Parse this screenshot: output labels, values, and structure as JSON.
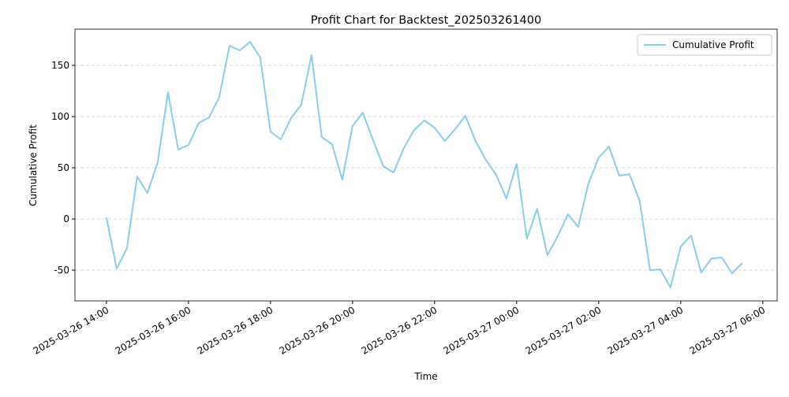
{
  "chart_data": {
    "type": "line",
    "title": "Profit Chart for Backtest_202503261400",
    "xlabel": "Time",
    "ylabel": "Cumulative Profit",
    "x": [
      "2025-03-26 14:00",
      "2025-03-26 14:15",
      "2025-03-26 14:30",
      "2025-03-26 14:45",
      "2025-03-26 15:00",
      "2025-03-26 15:15",
      "2025-03-26 15:30",
      "2025-03-26 15:45",
      "2025-03-26 16:00",
      "2025-03-26 16:15",
      "2025-03-26 16:30",
      "2025-03-26 16:45",
      "2025-03-26 17:00",
      "2025-03-26 17:15",
      "2025-03-26 17:30",
      "2025-03-26 17:45",
      "2025-03-26 18:00",
      "2025-03-26 18:15",
      "2025-03-26 18:30",
      "2025-03-26 18:45",
      "2025-03-26 19:00",
      "2025-03-26 19:15",
      "2025-03-26 19:30",
      "2025-03-26 19:45",
      "2025-03-26 20:00",
      "2025-03-26 20:15",
      "2025-03-26 20:30",
      "2025-03-26 20:45",
      "2025-03-26 21:00",
      "2025-03-26 21:15",
      "2025-03-26 21:30",
      "2025-03-26 21:45",
      "2025-03-26 22:00",
      "2025-03-26 22:15",
      "2025-03-26 22:30",
      "2025-03-26 22:45",
      "2025-03-26 23:00",
      "2025-03-26 23:15",
      "2025-03-26 23:30",
      "2025-03-26 23:45",
      "2025-03-27 00:00",
      "2025-03-27 00:15",
      "2025-03-27 00:30",
      "2025-03-27 00:45",
      "2025-03-27 01:00",
      "2025-03-27 01:15",
      "2025-03-27 01:30",
      "2025-03-27 01:45",
      "2025-03-27 02:00",
      "2025-03-27 02:15",
      "2025-03-27 02:30",
      "2025-03-27 02:45",
      "2025-03-27 03:00",
      "2025-03-27 03:15",
      "2025-03-27 03:30",
      "2025-03-27 03:45",
      "2025-03-27 04:00",
      "2025-03-27 04:15",
      "2025-03-27 04:30",
      "2025-03-27 04:45",
      "2025-03-27 05:00",
      "2025-03-27 05:15",
      "2025-03-27 05:30"
    ],
    "series": [
      {
        "name": "Cumulative Profit",
        "color": "#87ceeb",
        "values": [
          1.5,
          -48.5,
          -28.5,
          41.5,
          25.4,
          55.4,
          123.8,
          67.7,
          72.3,
          93.8,
          99.2,
          119.2,
          169.2,
          164.6,
          173,
          157.7,
          85.4,
          77.7,
          98.5,
          111.5,
          160,
          80,
          73,
          38.5,
          90.8,
          103.8,
          77,
          51.5,
          45.4,
          69.2,
          86.9,
          96.2,
          89.2,
          76.2,
          87.7,
          100.8,
          76.2,
          57.7,
          43.1,
          20,
          53.8,
          -19.2,
          10,
          -35.4,
          -16.9,
          4.6,
          -7.7,
          34.6,
          60,
          70.8,
          42.3,
          43.8,
          17.7,
          -50,
          -49.2,
          -66.9,
          -26.9,
          -16.2,
          -52.3,
          -38.5,
          -37.7,
          -53.1,
          -43.1
        ]
      }
    ],
    "xlim": [
      "2025-03-26 13:14",
      "2025-03-27 06:21"
    ],
    "xticks": [
      "2025-03-26 14:00",
      "2025-03-26 16:00",
      "2025-03-26 18:00",
      "2025-03-26 20:00",
      "2025-03-26 22:00",
      "2025-03-27 00:00",
      "2025-03-27 02:00",
      "2025-03-27 04:00",
      "2025-03-27 06:00"
    ],
    "ylim": [
      -80,
      185.4
    ],
    "yticks": [
      -50,
      0,
      50,
      100,
      150
    ],
    "grid": "y",
    "legend": "upper right"
  }
}
